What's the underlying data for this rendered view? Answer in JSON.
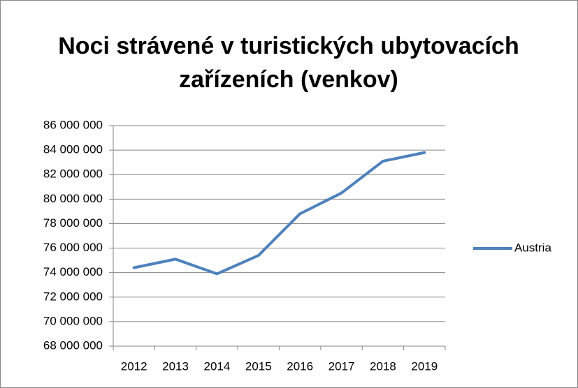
{
  "chart_data": {
    "type": "line",
    "title": "Noci strávené v turistických ubytovacích zařízeních (venkov)",
    "categories": [
      "2012",
      "2013",
      "2014",
      "2015",
      "2016",
      "2017",
      "2018",
      "2019"
    ],
    "series": [
      {
        "name": "Austria",
        "color": "#4f81bd",
        "values": [
          74400000,
          75100000,
          73900000,
          75400000,
          78800000,
          80500000,
          83100000,
          83800000
        ]
      }
    ],
    "ylim": [
      68000000,
      86000000
    ],
    "yticks": [
      {
        "value": 68000000,
        "label": "68 000 000"
      },
      {
        "value": 70000000,
        "label": "70 000 000"
      },
      {
        "value": 72000000,
        "label": "72 000 000"
      },
      {
        "value": 74000000,
        "label": "74 000 000"
      },
      {
        "value": 76000000,
        "label": "76 000 000"
      },
      {
        "value": 78000000,
        "label": "78 000 000"
      },
      {
        "value": 80000000,
        "label": "80 000 000"
      },
      {
        "value": 82000000,
        "label": "82 000 000"
      },
      {
        "value": 84000000,
        "label": "84 000 000"
      },
      {
        "value": 86000000,
        "label": "86 000 000"
      }
    ],
    "grid": true,
    "legend": "right"
  }
}
